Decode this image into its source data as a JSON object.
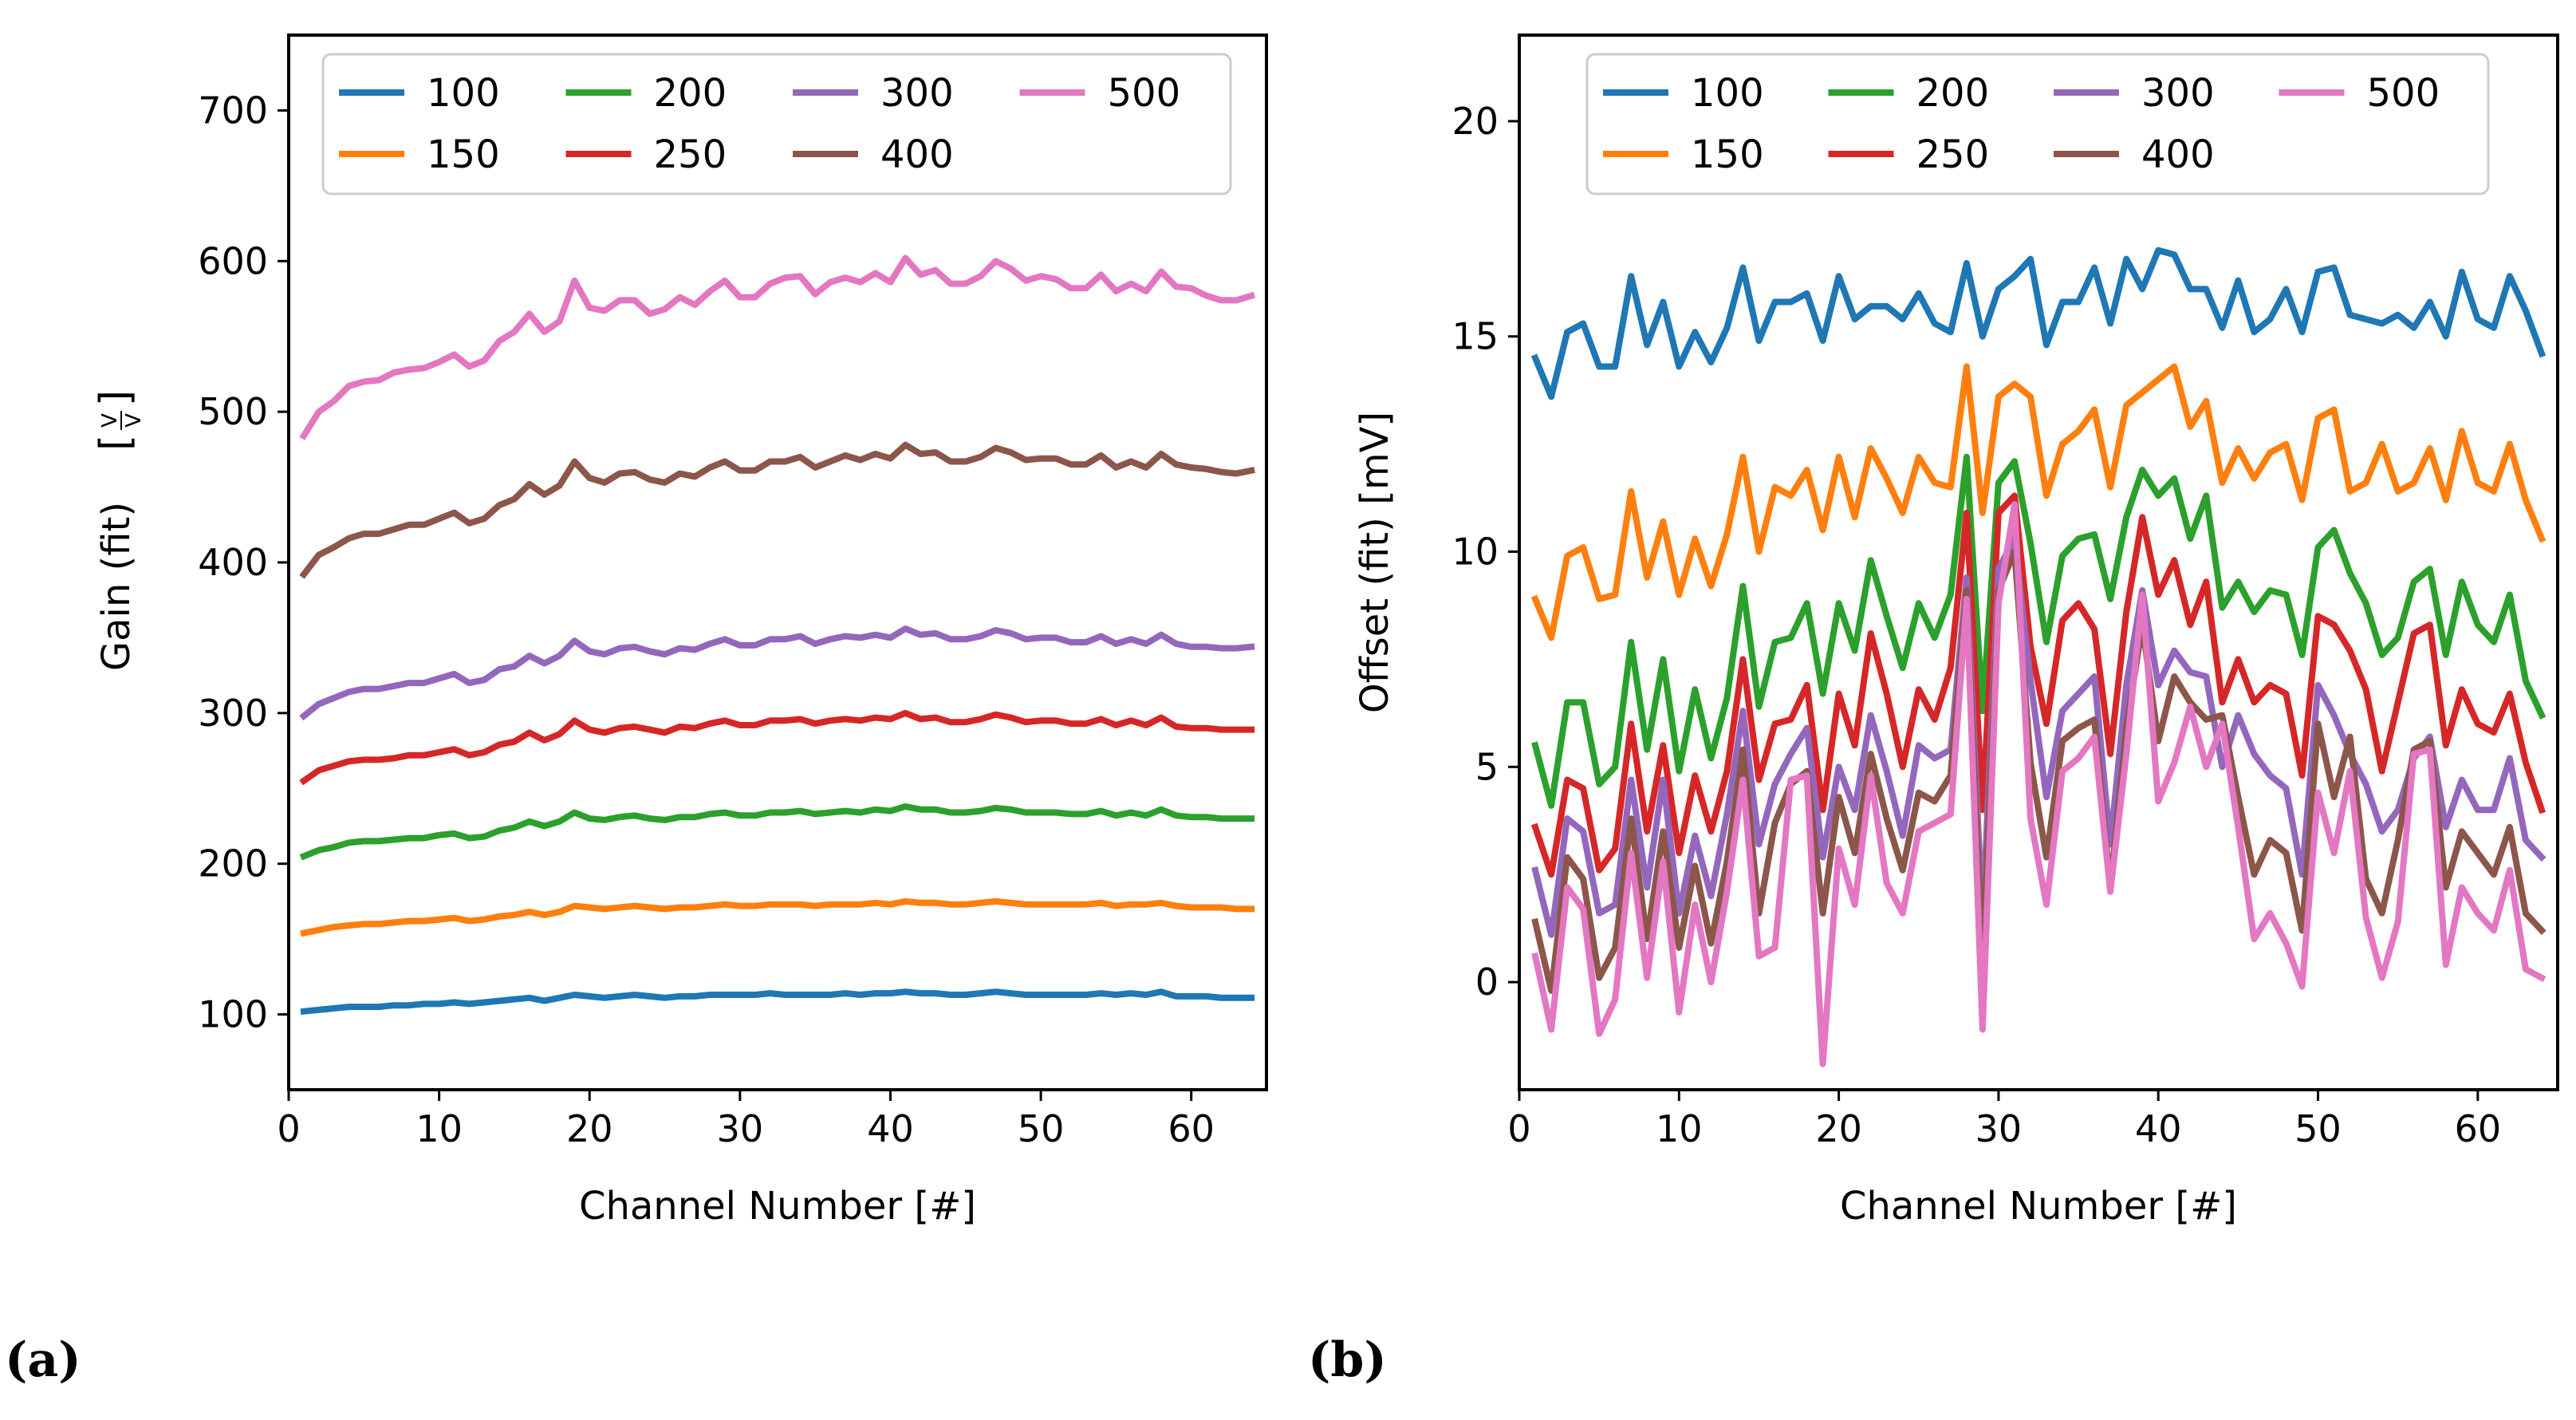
{
  "panel_labels": [
    "(a)",
    "(b)"
  ],
  "chart_data": [
    {
      "type": "line",
      "xlabel": "Channel Number [#]",
      "ylabel": "Gain (fit) [V/V]",
      "xlim": [
        0,
        65
      ],
      "ylim": [
        50,
        750
      ],
      "xticks": [
        0,
        10,
        20,
        30,
        40,
        50,
        60
      ],
      "yticks": [
        100,
        200,
        300,
        400,
        500,
        600,
        700
      ],
      "legend": {
        "placement": "top",
        "ncol": 4
      },
      "series": [
        {
          "name": "100",
          "color": "#1f77b4",
          "y": [
            102,
            103,
            104,
            105,
            105,
            105,
            106,
            106,
            107,
            107,
            108,
            107,
            108,
            109,
            110,
            111,
            109,
            111,
            113,
            112,
            111,
            112,
            113,
            112,
            111,
            112,
            112,
            113,
            113,
            113,
            113,
            114,
            113,
            113,
            113,
            113,
            114,
            113,
            114,
            114,
            115,
            114,
            114,
            113,
            113,
            114,
            115,
            114,
            113,
            113,
            113,
            113,
            113,
            114,
            113,
            114,
            113,
            115,
            112,
            112,
            112,
            111,
            111,
            111
          ]
        },
        {
          "name": "150",
          "color": "#ff7f0e",
          "y": [
            154,
            156,
            158,
            159,
            160,
            160,
            161,
            162,
            162,
            163,
            164,
            162,
            163,
            165,
            166,
            168,
            166,
            168,
            172,
            171,
            170,
            171,
            172,
            171,
            170,
            171,
            171,
            172,
            173,
            172,
            172,
            173,
            173,
            173,
            172,
            173,
            173,
            173,
            174,
            173,
            175,
            174,
            174,
            173,
            173,
            174,
            175,
            174,
            173,
            173,
            173,
            173,
            173,
            174,
            172,
            173,
            173,
            174,
            172,
            171,
            171,
            171,
            170,
            170
          ]
        },
        {
          "name": "200",
          "color": "#2ca02c",
          "y": [
            205,
            209,
            211,
            214,
            215,
            215,
            216,
            217,
            217,
            219,
            220,
            217,
            218,
            222,
            224,
            228,
            225,
            228,
            234,
            230,
            229,
            231,
            232,
            230,
            229,
            231,
            231,
            233,
            234,
            232,
            232,
            234,
            234,
            235,
            233,
            234,
            235,
            234,
            236,
            235,
            238,
            236,
            236,
            234,
            234,
            235,
            237,
            236,
            234,
            234,
            234,
            233,
            233,
            235,
            232,
            234,
            232,
            236,
            232,
            231,
            231,
            230,
            230,
            230
          ]
        },
        {
          "name": "250",
          "color": "#d62728",
          "y": [
            255,
            262,
            265,
            268,
            269,
            269,
            270,
            272,
            272,
            274,
            276,
            272,
            274,
            279,
            281,
            287,
            282,
            286,
            295,
            289,
            287,
            290,
            291,
            289,
            287,
            291,
            290,
            293,
            295,
            292,
            292,
            295,
            295,
            296,
            293,
            295,
            296,
            295,
            297,
            296,
            300,
            296,
            297,
            294,
            294,
            296,
            299,
            297,
            294,
            295,
            295,
            293,
            293,
            296,
            292,
            295,
            292,
            297,
            291,
            290,
            290,
            289,
            289,
            289
          ]
        },
        {
          "name": "300",
          "color": "#9467bd",
          "y": [
            298,
            306,
            310,
            314,
            316,
            316,
            318,
            320,
            320,
            323,
            326,
            320,
            322,
            329,
            331,
            338,
            333,
            338,
            348,
            341,
            339,
            343,
            344,
            341,
            339,
            343,
            342,
            346,
            349,
            345,
            345,
            349,
            349,
            351,
            346,
            349,
            351,
            350,
            352,
            350,
            356,
            352,
            353,
            349,
            349,
            351,
            355,
            353,
            349,
            350,
            350,
            347,
            347,
            351,
            346,
            349,
            346,
            352,
            346,
            344,
            344,
            343,
            343,
            344
          ]
        },
        {
          "name": "400",
          "color": "#8c564b",
          "y": [
            392,
            405,
            410,
            416,
            419,
            419,
            422,
            425,
            425,
            429,
            433,
            426,
            429,
            438,
            442,
            452,
            445,
            451,
            467,
            456,
            453,
            459,
            460,
            455,
            453,
            459,
            457,
            463,
            467,
            461,
            461,
            467,
            467,
            470,
            463,
            467,
            471,
            468,
            472,
            469,
            478,
            472,
            473,
            467,
            467,
            470,
            476,
            473,
            468,
            469,
            469,
            465,
            465,
            471,
            463,
            467,
            463,
            472,
            465,
            463,
            462,
            460,
            459,
            461
          ]
        },
        {
          "name": "500",
          "color": "#e377c2",
          "y": [
            484,
            500,
            507,
            517,
            520,
            521,
            526,
            528,
            529,
            533,
            538,
            530,
            534,
            547,
            553,
            565,
            553,
            560,
            587,
            569,
            567,
            574,
            574,
            565,
            568,
            576,
            571,
            580,
            587,
            576,
            576,
            585,
            589,
            590,
            578,
            586,
            589,
            586,
            592,
            586,
            602,
            591,
            594,
            585,
            585,
            590,
            600,
            595,
            587,
            590,
            588,
            582,
            582,
            591,
            580,
            585,
            580,
            593,
            583,
            582,
            577,
            574,
            574,
            577
          ]
        }
      ]
    },
    {
      "type": "line",
      "xlabel": "Channel Number [#]",
      "ylabel": "Offset (fit) [mV]",
      "xlim": [
        0,
        65
      ],
      "ylim": [
        -2.5,
        22
      ],
      "xticks": [
        0,
        10,
        20,
        30,
        40,
        50,
        60
      ],
      "yticks": [
        0,
        5,
        10,
        15,
        20
      ],
      "legend": {
        "placement": "top",
        "ncol": 4
      },
      "series": [
        {
          "name": "100",
          "color": "#1f77b4",
          "y": [
            14.5,
            13.6,
            15.1,
            15.3,
            14.3,
            14.3,
            16.4,
            14.8,
            15.8,
            14.3,
            15.1,
            14.4,
            15.2,
            16.6,
            14.9,
            15.8,
            15.8,
            16.0,
            14.9,
            16.4,
            15.4,
            15.7,
            15.7,
            15.4,
            16.0,
            15.3,
            15.1,
            16.7,
            15.0,
            16.1,
            16.4,
            16.8,
            14.8,
            15.8,
            15.8,
            16.6,
            15.3,
            16.8,
            16.1,
            17.0,
            16.9,
            16.1,
            16.1,
            15.2,
            16.3,
            15.1,
            15.4,
            16.1,
            15.1,
            16.5,
            16.6,
            15.5,
            15.4,
            15.3,
            15.5,
            15.2,
            15.8,
            15.0,
            16.5,
            15.4,
            15.2,
            16.4,
            15.6,
            14.6
          ]
        },
        {
          "name": "150",
          "color": "#ff7f0e",
          "y": [
            8.9,
            8.0,
            9.9,
            10.1,
            8.9,
            9.0,
            11.4,
            9.4,
            10.7,
            9.0,
            10.3,
            9.2,
            10.4,
            12.2,
            10.0,
            11.5,
            11.3,
            11.9,
            10.5,
            12.2,
            10.8,
            12.4,
            11.7,
            10.9,
            12.2,
            11.6,
            11.5,
            14.3,
            10.9,
            13.6,
            13.9,
            13.6,
            11.3,
            12.5,
            12.8,
            13.3,
            11.5,
            13.4,
            13.7,
            14.0,
            14.3,
            12.9,
            13.5,
            11.6,
            12.4,
            11.7,
            12.3,
            12.5,
            11.2,
            13.1,
            13.3,
            11.4,
            11.6,
            12.5,
            11.4,
            11.6,
            12.4,
            11.2,
            12.8,
            11.6,
            11.4,
            12.5,
            11.2,
            10.3
          ]
        },
        {
          "name": "200",
          "color": "#2ca02c",
          "y": [
            5.5,
            4.1,
            6.5,
            6.5,
            4.6,
            5.0,
            7.9,
            5.4,
            7.5,
            4.9,
            6.8,
            5.2,
            6.6,
            9.2,
            6.4,
            7.9,
            8.0,
            8.8,
            6.7,
            8.8,
            7.7,
            9.8,
            8.5,
            7.3,
            8.8,
            8.0,
            9.0,
            12.2,
            6.3,
            11.6,
            12.1,
            10.2,
            7.9,
            9.9,
            10.3,
            10.4,
            8.9,
            10.8,
            11.9,
            11.3,
            11.7,
            10.3,
            11.3,
            8.7,
            9.3,
            8.6,
            9.1,
            9.0,
            7.6,
            10.1,
            10.5,
            9.5,
            8.8,
            7.6,
            8.0,
            9.3,
            9.6,
            7.6,
            9.3,
            8.3,
            7.9,
            9.0,
            7.0,
            6.2
          ]
        },
        {
          "name": "250",
          "color": "#d62728",
          "y": [
            3.6,
            2.5,
            4.7,
            4.5,
            2.6,
            3.1,
            6.0,
            3.5,
            5.5,
            3.0,
            4.8,
            3.5,
            4.9,
            7.5,
            4.7,
            6.0,
            6.1,
            6.9,
            4.0,
            6.7,
            5.5,
            8.1,
            6.7,
            5.0,
            6.8,
            6.1,
            7.3,
            10.9,
            4.0,
            10.9,
            11.3,
            7.8,
            6.0,
            8.4,
            8.8,
            8.2,
            5.3,
            8.6,
            10.8,
            9.0,
            9.8,
            8.3,
            9.3,
            6.5,
            7.5,
            6.5,
            6.9,
            6.7,
            4.8,
            8.5,
            8.3,
            7.7,
            6.8,
            4.9,
            6.5,
            8.1,
            8.3,
            5.5,
            6.8,
            6.0,
            5.8,
            6.7,
            5.1,
            4.0
          ]
        },
        {
          "name": "300",
          "color": "#9467bd",
          "y": [
            2.6,
            1.1,
            3.8,
            3.5,
            1.6,
            1.8,
            4.7,
            2.2,
            4.7,
            1.6,
            3.4,
            2.0,
            3.9,
            6.3,
            3.2,
            4.6,
            5.3,
            5.9,
            2.9,
            5.0,
            4.0,
            6.2,
            4.9,
            3.4,
            5.5,
            5.2,
            5.4,
            9.4,
            1.4,
            9.6,
            10.3,
            7.0,
            4.3,
            6.3,
            6.7,
            7.1,
            3.2,
            6.9,
            9.1,
            6.9,
            7.7,
            7.2,
            7.1,
            5.0,
            6.2,
            5.3,
            4.8,
            4.5,
            2.5,
            6.9,
            6.2,
            5.3,
            4.6,
            3.5,
            4.0,
            5.2,
            5.7,
            3.6,
            4.7,
            4.0,
            4.0,
            5.2,
            3.3,
            2.9
          ]
        },
        {
          "name": "400",
          "color": "#8c564b",
          "y": [
            1.4,
            -0.2,
            2.9,
            2.4,
            0.1,
            0.8,
            3.8,
            1.0,
            3.5,
            0.8,
            2.7,
            0.9,
            2.8,
            5.4,
            1.6,
            3.7,
            4.6,
            4.9,
            1.6,
            4.3,
            3.0,
            5.3,
            3.8,
            2.6,
            4.4,
            4.2,
            4.8,
            9.1,
            0.4,
            9.1,
            10.0,
            5.1,
            2.9,
            5.6,
            5.9,
            6.1,
            2.2,
            5.9,
            8.3,
            5.6,
            7.1,
            6.5,
            6.1,
            6.2,
            4.3,
            2.5,
            3.3,
            3.0,
            1.2,
            6.0,
            4.3,
            5.7,
            2.4,
            1.6,
            3.3,
            5.4,
            5.6,
            2.2,
            3.5,
            3.0,
            2.5,
            3.6,
            1.6,
            1.2
          ]
        },
        {
          "name": "500",
          "color": "#e377c2",
          "y": [
            0.6,
            -1.1,
            2.2,
            1.7,
            -1.2,
            -0.4,
            3.0,
            0.1,
            2.8,
            -0.7,
            1.8,
            0.0,
            2.1,
            4.7,
            0.6,
            0.8,
            4.7,
            4.8,
            -1.9,
            3.1,
            1.8,
            4.8,
            2.3,
            1.6,
            3.5,
            3.7,
            3.9,
            8.9,
            -1.1,
            8.8,
            11.1,
            3.8,
            1.8,
            4.9,
            5.2,
            5.7,
            2.1,
            5.3,
            9.0,
            4.2,
            5.1,
            6.4,
            5.0,
            6.0,
            3.6,
            1.0,
            1.6,
            0.9,
            -0.1,
            4.4,
            3.0,
            4.9,
            1.5,
            0.1,
            1.4,
            5.3,
            5.4,
            0.4,
            2.2,
            1.6,
            1.2,
            2.6,
            0.3,
            0.1
          ]
        }
      ]
    }
  ]
}
